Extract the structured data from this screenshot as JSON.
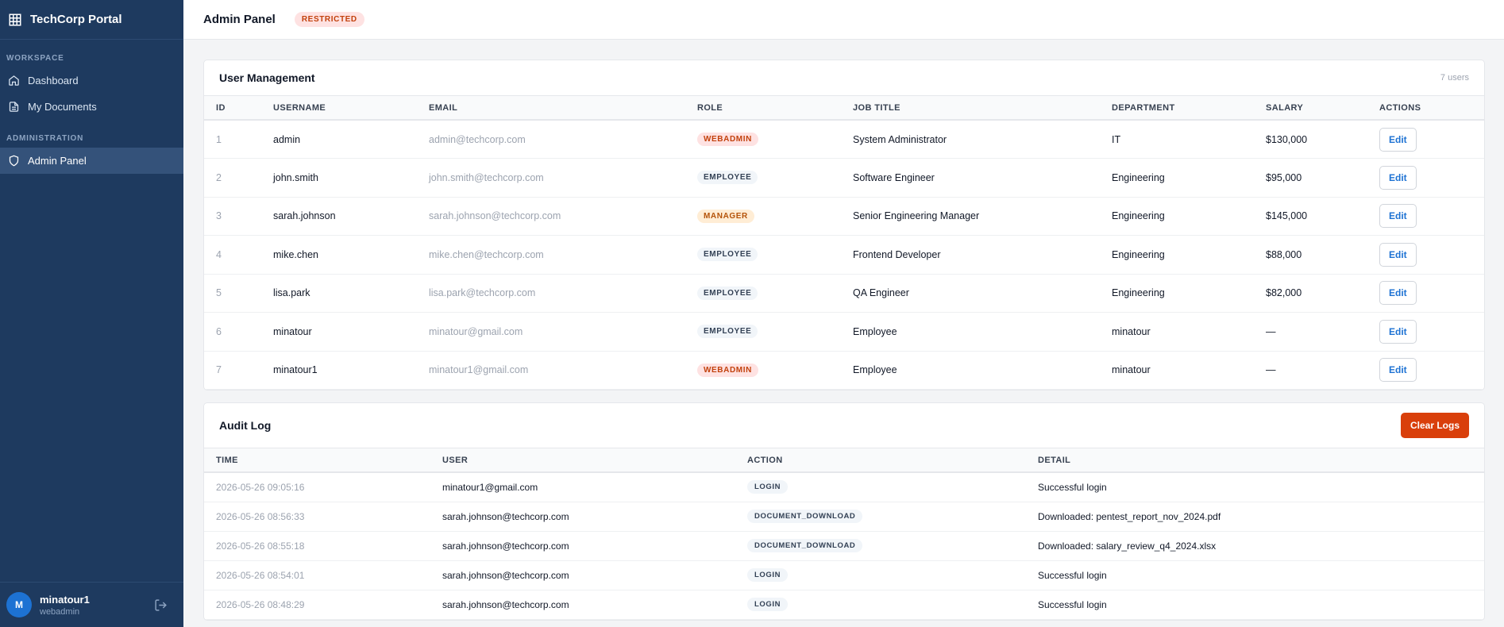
{
  "sidebar": {
    "brand": "TechCorp Portal",
    "sections": [
      {
        "title": "WORKSPACE",
        "items": [
          "Dashboard",
          "My Documents"
        ]
      },
      {
        "title": "ADMINISTRATION",
        "items": [
          "Admin Panel"
        ]
      }
    ],
    "user": {
      "initial": "M",
      "name": "minatour1",
      "role": "webadmin"
    }
  },
  "header": {
    "title": "Admin Panel",
    "badge": "RESTRICTED"
  },
  "users": {
    "title": "User Management",
    "count": "7 users",
    "columns": [
      "ID",
      "USERNAME",
      "EMAIL",
      "ROLE",
      "JOB TITLE",
      "DEPARTMENT",
      "SALARY",
      "ACTIONS"
    ],
    "rows": [
      {
        "id": "1",
        "username": "admin",
        "email": "admin@techcorp.com",
        "role": "WEBADMIN",
        "role_color": "#c2410c",
        "role_bg": "#fee2e2",
        "job": "System Administrator",
        "dept": "IT",
        "salary": "$130,000",
        "action": "Edit"
      },
      {
        "id": "2",
        "username": "john.smith",
        "email": "john.smith@techcorp.com",
        "role": "EMPLOYEE",
        "role_color": "#334155",
        "role_bg": "#f1f5f9",
        "job": "Software Engineer",
        "dept": "Engineering",
        "salary": "$95,000",
        "action": "Edit"
      },
      {
        "id": "3",
        "username": "sarah.johnson",
        "email": "sarah.johnson@techcorp.com",
        "role": "MANAGER",
        "role_color": "#b45309",
        "role_bg": "#ffedd5",
        "job": "Senior Engineering Manager",
        "dept": "Engineering",
        "salary": "$145,000",
        "action": "Edit"
      },
      {
        "id": "4",
        "username": "mike.chen",
        "email": "mike.chen@techcorp.com",
        "role": "EMPLOYEE",
        "role_color": "#334155",
        "role_bg": "#f1f5f9",
        "job": "Frontend Developer",
        "dept": "Engineering",
        "salary": "$88,000",
        "action": "Edit"
      },
      {
        "id": "5",
        "username": "lisa.park",
        "email": "lisa.park@techcorp.com",
        "role": "EMPLOYEE",
        "role_color": "#334155",
        "role_bg": "#f1f5f9",
        "job": "QA Engineer",
        "dept": "Engineering",
        "salary": "$82,000",
        "action": "Edit"
      },
      {
        "id": "6",
        "username": "minatour",
        "email": "minatour@gmail.com",
        "role": "EMPLOYEE",
        "role_color": "#334155",
        "role_bg": "#f1f5f9",
        "job": "Employee",
        "dept": "minatour",
        "salary": "—",
        "action": "Edit"
      },
      {
        "id": "7",
        "username": "minatour1",
        "email": "minatour1@gmail.com",
        "role": "WEBADMIN",
        "role_color": "#c2410c",
        "role_bg": "#fee2e2",
        "job": "Employee",
        "dept": "minatour",
        "salary": "—",
        "action": "Edit"
      }
    ]
  },
  "audit": {
    "title": "Audit Log",
    "button": "Clear Logs",
    "columns": [
      "TIME",
      "USER",
      "ACTION",
      "DETAIL"
    ],
    "rows": [
      {
        "time": "2026-05-26 09:05:16",
        "user": "minatour1@gmail.com",
        "action": "LOGIN",
        "detail": "Successful login"
      },
      {
        "time": "2026-05-26 08:56:33",
        "user": "sarah.johnson@techcorp.com",
        "action": "DOCUMENT_DOWNLOAD",
        "detail": "Downloaded: pentest_report_nov_2024.pdf"
      },
      {
        "time": "2026-05-26 08:55:18",
        "user": "sarah.johnson@techcorp.com",
        "action": "DOCUMENT_DOWNLOAD",
        "detail": "Downloaded: salary_review_q4_2024.xlsx"
      },
      {
        "time": "2026-05-26 08:54:01",
        "user": "sarah.johnson@techcorp.com",
        "action": "LOGIN",
        "detail": "Successful login"
      },
      {
        "time": "2026-05-26 08:48:29",
        "user": "sarah.johnson@techcorp.com",
        "action": "LOGIN",
        "detail": "Successful login"
      }
    ]
  }
}
